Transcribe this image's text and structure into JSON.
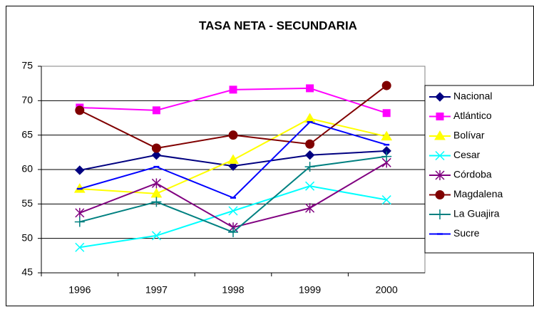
{
  "chart_data": {
    "type": "line",
    "title": "TASA NETA - SECUNDARIA",
    "categories": [
      "1996",
      "1997",
      "1998",
      "1999",
      "2000"
    ],
    "ylim": [
      45,
      75
    ],
    "yticks": [
      45,
      50,
      55,
      60,
      65,
      70,
      75
    ],
    "grid": true,
    "legend": "right",
    "series": [
      {
        "name": "Nacional",
        "color": "#000080",
        "marker": "diamond",
        "values": [
          59.9,
          62.1,
          60.5,
          62.1,
          62.7
        ]
      },
      {
        "name": "Atlántico",
        "color": "#FF00FF",
        "marker": "square",
        "values": [
          69.0,
          68.6,
          71.6,
          71.8,
          68.2
        ]
      },
      {
        "name": "Bolívar",
        "color": "#FFFF00",
        "marker": "triangle",
        "values": [
          57.2,
          56.5,
          61.4,
          67.4,
          64.8
        ]
      },
      {
        "name": "Cesar",
        "color": "#00FFFF",
        "marker": "x",
        "values": [
          48.7,
          50.4,
          54.0,
          57.6,
          55.6
        ]
      },
      {
        "name": "Córdoba",
        "color": "#800080",
        "marker": "star",
        "values": [
          53.7,
          58.0,
          51.6,
          54.4,
          61.0
        ]
      },
      {
        "name": "Magdalena",
        "color": "#800000",
        "marker": "circle",
        "values": [
          68.6,
          63.1,
          65.0,
          63.7,
          72.2
        ]
      },
      {
        "name": "La Guajira",
        "color": "#008080",
        "marker": "plus",
        "values": [
          52.4,
          55.3,
          50.9,
          60.4,
          61.9
        ]
      },
      {
        "name": "Sucre",
        "color": "#0000FF",
        "marker": "dash",
        "values": [
          57.2,
          60.4,
          55.9,
          66.9,
          63.6
        ]
      }
    ]
  }
}
